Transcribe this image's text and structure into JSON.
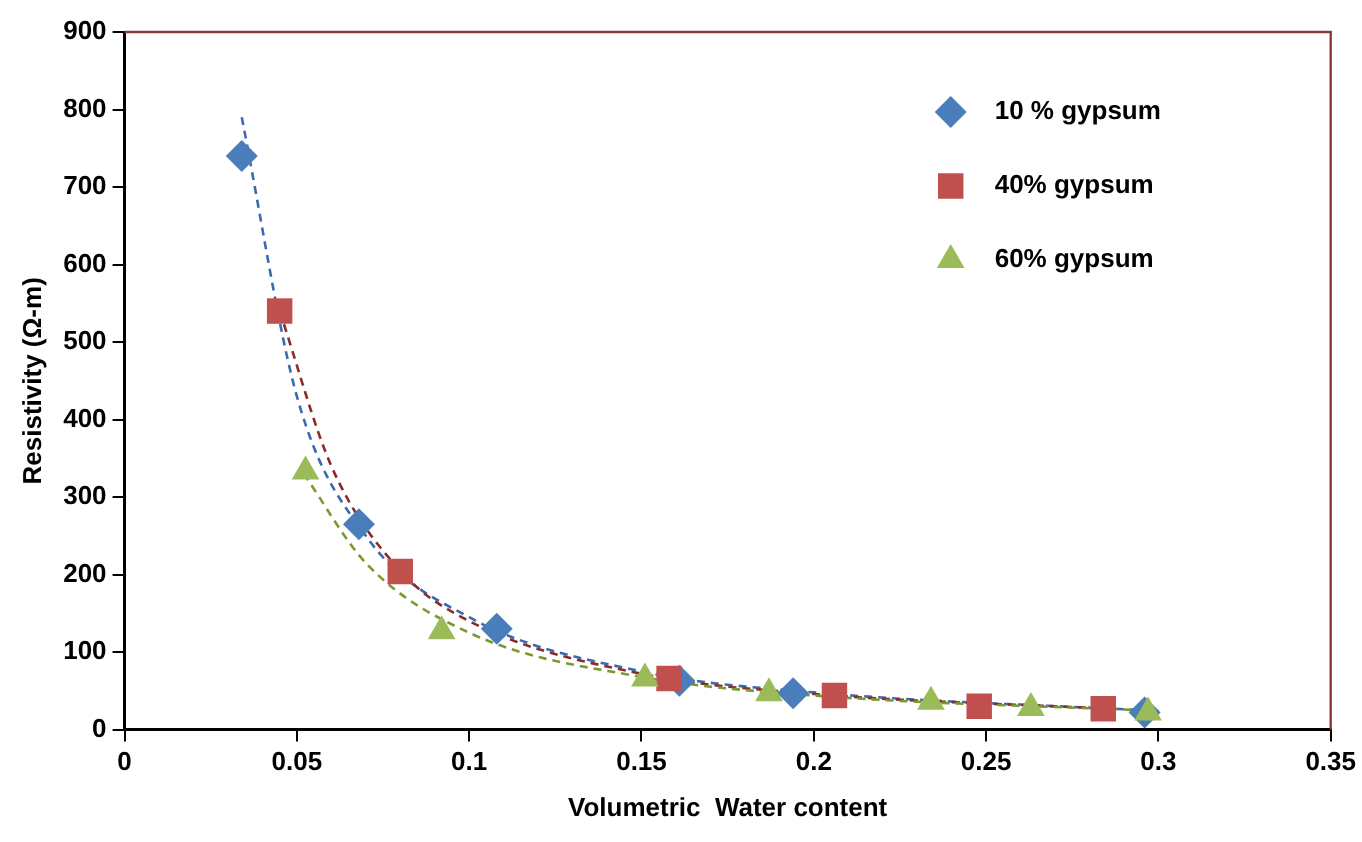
{
  "chart_data": {
    "type": "scatter",
    "xlabel": "Volumetric  Water content",
    "ylabel": "Resistivity (Ω-m)",
    "xlim": [
      0,
      0.35
    ],
    "ylim": [
      0,
      900
    ],
    "xticks": [
      0,
      0.05,
      0.1,
      0.15,
      0.2,
      0.25,
      0.3,
      0.35
    ],
    "yticks": [
      0,
      100,
      200,
      300,
      400,
      500,
      600,
      700,
      800,
      900
    ],
    "grid": false,
    "legend": "top right",
    "series": [
      {
        "name": "10 % gypsum",
        "color": "#4a7ebb",
        "marker": "diamond",
        "x": [
          0.034,
          0.068,
          0.108,
          0.161,
          0.194,
          0.296
        ],
        "values": [
          740,
          265,
          130,
          63,
          47,
          22
        ]
      },
      {
        "name": "40% gypsum",
        "color": "#c0504d",
        "marker": "square",
        "x": [
          0.045,
          0.08,
          0.158,
          0.206,
          0.248,
          0.284
        ],
        "values": [
          540,
          204,
          66,
          44,
          30,
          27
        ]
      },
      {
        "name": "60% gypsum",
        "color": "#9bbb59",
        "marker": "triangle",
        "x": [
          0.0525,
          0.092,
          0.151,
          0.187,
          0.234,
          0.263,
          0.297
        ],
        "values": [
          333,
          127,
          66,
          47,
          36,
          28,
          22
        ]
      },
      {
        "type": "line",
        "color": "#3a6ab0",
        "marker": "none",
        "line_style": "dashed",
        "x": [
          0.034,
          0.05,
          0.07,
          0.1,
          0.15,
          0.2,
          0.3
        ],
        "values": [
          790,
          430,
          250,
          145,
          75,
          48,
          24
        ]
      },
      {
        "type": "line",
        "color": "#8b2a2a",
        "marker": "none",
        "line_style": "dashed",
        "x": [
          0.045,
          0.06,
          0.08,
          0.1,
          0.15,
          0.2,
          0.285
        ],
        "values": [
          540,
          340,
          205,
          140,
          72,
          46,
          27
        ]
      },
      {
        "type": "line",
        "color": "#7a9a30",
        "marker": "none",
        "line_style": "dashed",
        "x": [
          0.052,
          0.07,
          0.1,
          0.15,
          0.2,
          0.3
        ],
        "values": [
          330,
          215,
          125,
          68,
          44,
          24
        ]
      }
    ]
  }
}
